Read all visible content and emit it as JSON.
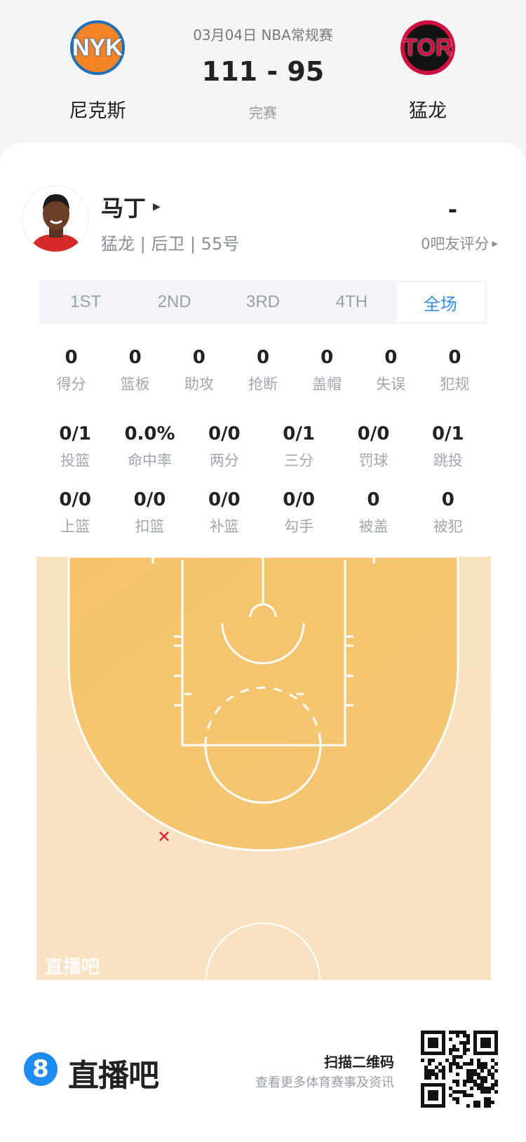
{
  "header": {
    "home_team": {
      "name": "尼克斯",
      "logo_text": "NYK"
    },
    "away_team": {
      "name": "猛龙",
      "logo_text": "TOR"
    },
    "date_league": "03月04日 NBA常规赛",
    "score": "111 - 95",
    "status": "完赛"
  },
  "player": {
    "name": "马丁",
    "info": "猛龙 | 后卫 | 55号",
    "rating": "-",
    "rating_label": "0吧友评分"
  },
  "tabs": [
    {
      "label": "1ST"
    },
    {
      "label": "2ND"
    },
    {
      "label": "3RD"
    },
    {
      "label": "4TH"
    },
    {
      "label": "全场",
      "active": true
    }
  ],
  "stats_row1": [
    {
      "value": "0",
      "label": "得分"
    },
    {
      "value": "0",
      "label": "篮板"
    },
    {
      "value": "0",
      "label": "助攻"
    },
    {
      "value": "0",
      "label": "抢断"
    },
    {
      "value": "0",
      "label": "盖帽"
    },
    {
      "value": "0",
      "label": "失误"
    },
    {
      "value": "0",
      "label": "犯规"
    }
  ],
  "stats_row2": [
    {
      "value": "0/1",
      "label": "投篮"
    },
    {
      "value": "0.0%",
      "label": "命中率"
    },
    {
      "value": "0/0",
      "label": "两分"
    },
    {
      "value": "0/1",
      "label": "三分"
    },
    {
      "value": "0/0",
      "label": "罚球"
    },
    {
      "value": "0/1",
      "label": "跳投"
    }
  ],
  "stats_row3": [
    {
      "value": "0/0",
      "label": "上篮"
    },
    {
      "value": "0/0",
      "label": "扣篮"
    },
    {
      "value": "0/0",
      "label": "补篮"
    },
    {
      "value": "0/0",
      "label": "勾手"
    },
    {
      "value": "0",
      "label": "被盖"
    },
    {
      "value": "0",
      "label": "被犯"
    }
  ],
  "shot_chart": {
    "watermark": "直播吧",
    "shots": [
      {
        "result": "miss",
        "marker": "x",
        "color": "#e0263c"
      }
    ],
    "colors": {
      "outer": "#f8e3c0",
      "inner": "#f5c66f",
      "line": "#ffffff"
    }
  },
  "footer": {
    "brand_mark": "8",
    "brand": "直播吧",
    "qr_title": "扫描二维码",
    "qr_subtitle": "查看更多体育赛事及资讯"
  },
  "colors": {
    "accent": "#3a8ee6",
    "brand": "#1e8bf0"
  }
}
